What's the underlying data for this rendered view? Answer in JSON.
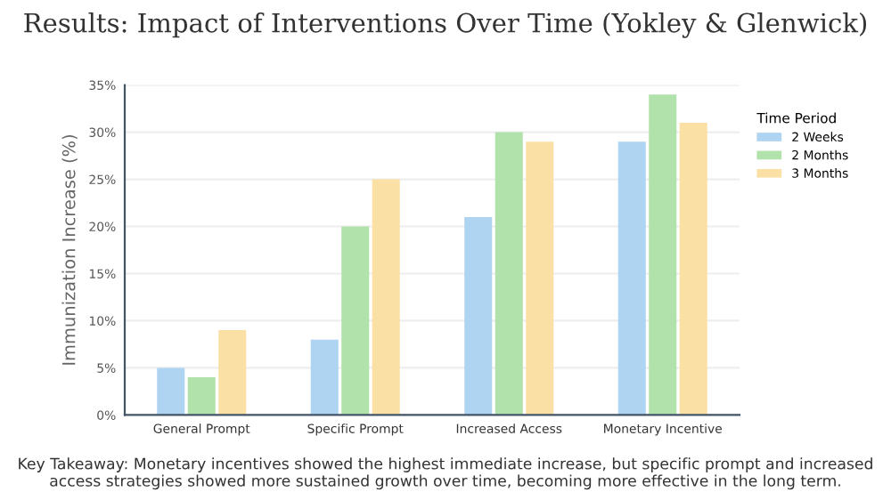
{
  "chart_data": {
    "type": "bar",
    "title": "Results: Impact of Interventions Over Time (Yokley & Glenwick)",
    "ylabel": "Immunization Increase (%)",
    "legend_title": "Time Period",
    "categories": [
      "General Prompt",
      "Specific Prompt",
      "Increased Access",
      "Monetary Incentive"
    ],
    "series": [
      {
        "name": "2 Weeks",
        "color": "#aed4f2",
        "values": [
          5,
          8,
          21,
          29
        ]
      },
      {
        "name": "2 Months",
        "color": "#b2e2ab",
        "values": [
          4,
          20,
          30,
          34
        ]
      },
      {
        "name": "3 Months",
        "color": "#fbe0a6",
        "values": [
          9,
          25,
          29,
          31
        ]
      }
    ],
    "ylim": [
      0,
      35
    ],
    "yticks": [
      {
        "value": 0,
        "label": "0%"
      },
      {
        "value": 5,
        "label": "5%"
      },
      {
        "value": 10,
        "label": "10%"
      },
      {
        "value": 15,
        "label": "15%"
      },
      {
        "value": 20,
        "label": "20%"
      },
      {
        "value": 25,
        "label": "25%"
      },
      {
        "value": 30,
        "label": "30%"
      },
      {
        "value": 35,
        "label": "35%"
      }
    ],
    "grid": "y",
    "legend": "right",
    "annotations": [
      "Key Takeaway: Monetary incentives showed the highest immediate increase, but specific prompt and increased access strategies showed more sustained growth over time, becoming more effective in the long term."
    ]
  }
}
